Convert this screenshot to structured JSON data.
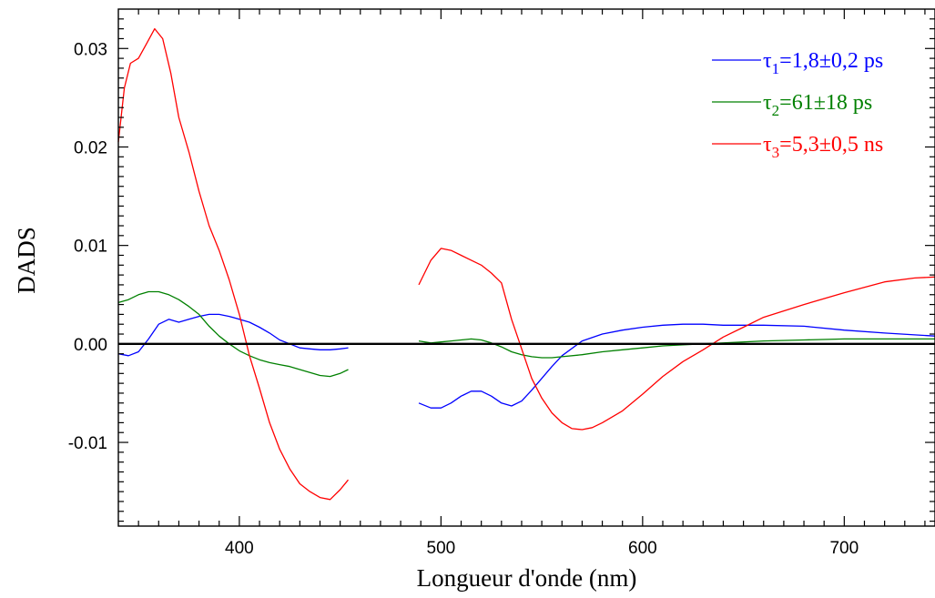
{
  "chart_data": {
    "type": "line",
    "title": "",
    "xlabel": "Longueur d'onde (nm)",
    "ylabel": "DADS",
    "xlim": [
      340,
      745
    ],
    "ylim": [
      -0.0185,
      0.034
    ],
    "x_ticks": [
      400,
      500,
      600,
      700
    ],
    "x_tick_labels": [
      "400",
      "500",
      "600",
      "700"
    ],
    "y_ticks": [
      -0.01,
      0.0,
      0.01,
      0.02,
      0.03
    ],
    "y_tick_labels": [
      "-0.01",
      "0.00",
      "0.01",
      "0.02",
      "0.03"
    ],
    "zero_line": true,
    "grid": false,
    "legend_position": "top-right",
    "series": [
      {
        "name": "τ1=1,8±0,2 ps",
        "tau_symbol": "τ",
        "tau_index": "1",
        "label_rest": "=1,8±0,2 ps",
        "color": "#0000ff",
        "segments": [
          {
            "x": [
              340,
              345,
              350,
              355,
              360,
              365,
              370,
              375,
              380,
              385,
              390,
              395,
              400,
              405,
              410,
              415,
              420,
              425,
              430,
              435,
              440,
              445,
              450,
              454
            ],
            "y": [
              -0.001,
              -0.0012,
              -0.0008,
              0.0005,
              0.002,
              0.0025,
              0.0022,
              0.0025,
              0.0028,
              0.003,
              0.003,
              0.0028,
              0.0025,
              0.0022,
              0.0017,
              0.0011,
              0.0004,
              0.0,
              -0.0004,
              -0.0005,
              -0.0006,
              -0.0006,
              -0.0005,
              -0.0004
            ]
          },
          {
            "x": [
              489,
              495,
              500,
              505,
              510,
              515,
              520,
              525,
              530,
              535,
              540,
              545,
              550,
              555,
              560,
              570,
              580,
              590,
              600,
              610,
              620,
              630,
              640,
              660,
              680,
              700,
              720,
              745
            ],
            "y": [
              -0.006,
              -0.0065,
              -0.0065,
              -0.006,
              -0.0053,
              -0.0048,
              -0.0048,
              -0.0053,
              -0.006,
              -0.0063,
              -0.0058,
              -0.0047,
              -0.0035,
              -0.0023,
              -0.0012,
              0.0003,
              0.001,
              0.0014,
              0.0017,
              0.0019,
              0.002,
              0.002,
              0.0019,
              0.0019,
              0.0018,
              0.0014,
              0.0011,
              0.0008
            ]
          }
        ]
      },
      {
        "name": "τ2=61±18 ps",
        "tau_symbol": "τ",
        "tau_index": "2",
        "label_rest": "=61±18 ps",
        "color": "#008000",
        "segments": [
          {
            "x": [
              340,
              345,
              350,
              355,
              360,
              365,
              370,
              375,
              380,
              385,
              390,
              395,
              400,
              405,
              410,
              415,
              420,
              425,
              430,
              435,
              440,
              445,
              450,
              454
            ],
            "y": [
              0.0042,
              0.0045,
              0.005,
              0.0053,
              0.0053,
              0.005,
              0.0045,
              0.0038,
              0.003,
              0.0018,
              0.0008,
              0.0,
              -0.0007,
              -0.0012,
              -0.0016,
              -0.0019,
              -0.0021,
              -0.0023,
              -0.0026,
              -0.0029,
              -0.0032,
              -0.0033,
              -0.003,
              -0.0026
            ]
          },
          {
            "x": [
              489,
              495,
              500,
              505,
              510,
              515,
              520,
              525,
              530,
              535,
              540,
              545,
              550,
              555,
              560,
              570,
              580,
              590,
              600,
              610,
              620,
              630,
              640,
              660,
              680,
              700,
              720,
              745
            ],
            "y": [
              0.0003,
              0.0001,
              0.0002,
              0.0003,
              0.0004,
              0.0005,
              0.0004,
              0.0001,
              -0.0003,
              -0.0008,
              -0.0011,
              -0.0013,
              -0.0014,
              -0.0014,
              -0.0013,
              -0.0011,
              -0.0008,
              -0.0006,
              -0.0004,
              -0.0002,
              -0.0001,
              0.0,
              0.0001,
              0.0003,
              0.0004,
              0.0005,
              0.0005,
              0.0005
            ]
          }
        ]
      },
      {
        "name": "τ3=5,3±0,5 ns",
        "tau_symbol": "τ",
        "tau_index": "3",
        "label_rest": "=5,3±0,5 ns",
        "color": "#ff0000",
        "segments": [
          {
            "x": [
              340,
              343,
              346,
              350,
              354,
              358,
              362,
              366,
              370,
              375,
              380,
              385,
              390,
              395,
              400,
              405,
              410,
              415,
              420,
              425,
              430,
              435,
              440,
              445,
              450,
              454
            ],
            "y": [
              0.0205,
              0.026,
              0.0285,
              0.029,
              0.0305,
              0.032,
              0.031,
              0.0275,
              0.023,
              0.0195,
              0.0155,
              0.012,
              0.0095,
              0.0065,
              0.003,
              -0.0012,
              -0.0045,
              -0.008,
              -0.0107,
              -0.0127,
              -0.0142,
              -0.015,
              -0.0156,
              -0.0158,
              -0.0148,
              -0.0138
            ]
          },
          {
            "x": [
              489,
              495,
              500,
              505,
              510,
              515,
              520,
              525,
              530,
              535,
              540,
              545,
              550,
              555,
              560,
              565,
              570,
              575,
              580,
              590,
              600,
              610,
              620,
              630,
              640,
              650,
              660,
              680,
              700,
              720,
              735,
              745
            ],
            "y": [
              0.006,
              0.0085,
              0.0097,
              0.0095,
              0.009,
              0.0085,
              0.008,
              0.0072,
              0.0062,
              0.0025,
              -0.0005,
              -0.0035,
              -0.0055,
              -0.007,
              -0.008,
              -0.0086,
              -0.0087,
              -0.0085,
              -0.008,
              -0.0068,
              -0.0051,
              -0.0033,
              -0.0018,
              -0.0006,
              0.0007,
              0.0017,
              0.0027,
              0.004,
              0.0052,
              0.0063,
              0.0067,
              0.0068
            ]
          }
        ]
      }
    ]
  }
}
